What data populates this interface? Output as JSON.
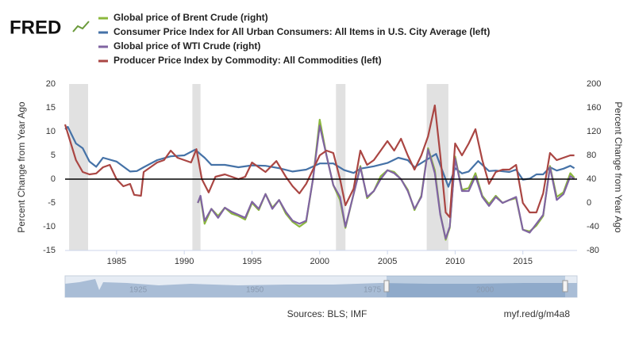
{
  "logo": "FRED",
  "chart_data": {
    "type": "line",
    "y_label": "Percent Change from Year Ago",
    "y2_label": "Percent Change from Year Ago",
    "xlim": [
      1981.2,
      2019
    ],
    "xticks": [
      1985,
      1990,
      1995,
      2000,
      2005,
      2010,
      2015
    ],
    "ylim": [
      -15,
      20
    ],
    "yticks": [
      -15,
      -10,
      -5,
      0,
      5,
      10,
      15,
      20
    ],
    "y2lim": [
      -80,
      200
    ],
    "y2ticks": [
      -80,
      -40,
      0,
      40,
      80,
      120,
      160,
      200
    ],
    "zero_line": true,
    "grid": false,
    "recessions": [
      [
        1981.5,
        1982.9
      ],
      [
        1990.6,
        1991.2
      ],
      [
        2001.2,
        2001.9
      ],
      [
        2007.9,
        2009.5
      ]
    ],
    "series": [
      {
        "name": "Global price of Brent Crude (right)",
        "color": "#8bb83c",
        "axis": "y2",
        "x": [
          1991.0,
          1991.2,
          1991.5,
          1992,
          1992.5,
          1993,
          1993.5,
          1994,
          1994.5,
          1995,
          1995.5,
          1996,
          1996.5,
          1997,
          1997.5,
          1998,
          1998.5,
          1999,
          1999.5,
          2000,
          2000.5,
          2001,
          2001.5,
          2001.9,
          2002.5,
          2003,
          2003.5,
          2004,
          2004.5,
          2005,
          2005.5,
          2006,
          2006.5,
          2007,
          2007.5,
          2008,
          2008.5,
          2008.9,
          2009.3,
          2009.6,
          2010,
          2010.5,
          2011,
          2011.5,
          2012,
          2012.5,
          2013,
          2013.5,
          2014,
          2014.5,
          2015,
          2015.5,
          2016,
          2016.5,
          2017,
          2017.5,
          2018,
          2018.5,
          2018.8
        ],
        "values": [
          0,
          10,
          -35,
          -10,
          -22,
          -8,
          -18,
          -22,
          -28,
          0,
          -12,
          15,
          -8,
          5,
          -18,
          -32,
          -40,
          -32,
          40,
          140,
          80,
          30,
          5,
          -42,
          15,
          62,
          8,
          20,
          45,
          55,
          52,
          40,
          22,
          -12,
          12,
          92,
          55,
          -18,
          -62,
          -42,
          78,
          22,
          25,
          50,
          12,
          -2,
          12,
          0,
          5,
          8,
          -45,
          -48,
          -38,
          -22,
          62,
          10,
          18,
          50,
          42
        ]
      },
      {
        "name": "Consumer Price Index for All Urban Consumers: All Items in U.S. City Average (left)",
        "color": "#4572a7",
        "x": [
          1981.2,
          1981.4,
          1982,
          1982.5,
          1983,
          1983.5,
          1984,
          1985,
          1986,
          1986.5,
          1987,
          1988,
          1989,
          1990,
          1990.8,
          1991.5,
          1992,
          1993,
          1994,
          1995,
          1996,
          1997,
          1998,
          1999,
          2000,
          2001,
          2001.8,
          2002.5,
          2003,
          2004,
          2005,
          2005.8,
          2006.5,
          2007,
          2007.9,
          2008.6,
          2009.5,
          2010,
          2010.5,
          2011,
          2011.7,
          2012.5,
          2013,
          2014,
          2014.5,
          2015,
          2015.5,
          2016,
          2016.5,
          2017,
          2017.5,
          2018,
          2018.5,
          2018.8
        ],
        "values": [
          10.5,
          11,
          7.5,
          6.5,
          3.7,
          2.6,
          4.5,
          3.7,
          1.6,
          1.7,
          2.5,
          4.0,
          4.8,
          5.0,
          6.2,
          4.5,
          3.0,
          3.0,
          2.5,
          2.9,
          2.8,
          2.3,
          1.6,
          2.0,
          3.3,
          3.3,
          1.9,
          1.3,
          2.2,
          2.7,
          3.4,
          4.5,
          4.0,
          2.5,
          4.1,
          5.3,
          -1.6,
          2.3,
          1.2,
          1.6,
          3.8,
          1.7,
          1.8,
          1.5,
          2.0,
          -0.1,
          0.1,
          1.0,
          1.0,
          2.5,
          1.8,
          2.2,
          2.8,
          2.3
        ]
      },
      {
        "name": "Global price of WTI Crude (right)",
        "color": "#8064a2",
        "axis": "y2",
        "x": [
          1991.0,
          1991.2,
          1991.5,
          1992,
          1992.5,
          1993,
          1993.5,
          1994,
          1994.5,
          1995,
          1995.5,
          1996,
          1996.5,
          1997,
          1997.5,
          1998,
          1998.5,
          1999,
          1999.5,
          2000,
          2000.5,
          2001,
          2001.5,
          2001.9,
          2002.5,
          2003,
          2003.5,
          2004,
          2004.5,
          2005,
          2005.5,
          2006,
          2006.5,
          2007,
          2007.5,
          2008,
          2008.5,
          2008.9,
          2009.3,
          2009.6,
          2010,
          2010.5,
          2011,
          2011.5,
          2012,
          2012.5,
          2013,
          2013.5,
          2014,
          2014.5,
          2015,
          2015.5,
          2016,
          2016.5,
          2017,
          2017.5,
          2018,
          2018.5,
          2018.8
        ],
        "values": [
          0,
          12,
          -30,
          -10,
          -25,
          -8,
          -15,
          -20,
          -25,
          2,
          -10,
          15,
          -10,
          5,
          -15,
          -30,
          -35,
          -30,
          40,
          130,
          80,
          30,
          10,
          -40,
          15,
          60,
          10,
          20,
          40,
          55,
          50,
          40,
          20,
          -10,
          10,
          90,
          50,
          -20,
          -60,
          -40,
          75,
          20,
          20,
          45,
          10,
          -5,
          10,
          0,
          5,
          10,
          -45,
          -50,
          -35,
          -20,
          60,
          5,
          15,
          45,
          40
        ]
      },
      {
        "name": "Producer Price Index by Commodity: All Commodities (left)",
        "color": "#aa4643",
        "x": [
          1981.2,
          1982,
          1982.5,
          1983,
          1983.5,
          1984,
          1984.5,
          1985,
          1985.5,
          1986,
          1986.3,
          1986.8,
          1987,
          1987.5,
          1988,
          1988.5,
          1989,
          1989.5,
          1990,
          1990.5,
          1990.9,
          1991.3,
          1991.8,
          1992.3,
          1993,
          1993.5,
          1994,
          1994.5,
          1995,
          1996,
          1996.8,
          1997.5,
          1998,
          1998.5,
          1999,
          1999.5,
          2000,
          2000.5,
          2001,
          2001.5,
          2001.9,
          2002.5,
          2003,
          2003.5,
          2004,
          2004.5,
          2005,
          2005.5,
          2006,
          2006.5,
          2007,
          2007.5,
          2008,
          2008.5,
          2008.9,
          2009.3,
          2009.6,
          2010,
          2010.5,
          2011,
          2011.5,
          2012,
          2012.5,
          2013,
          2013.5,
          2014,
          2014.5,
          2015,
          2015.5,
          2016,
          2016.5,
          2017,
          2017.5,
          2018,
          2018.5,
          2018.8
        ],
        "values": [
          11.5,
          4,
          1.5,
          1,
          1.2,
          2.5,
          3,
          0,
          -1.5,
          -1,
          -3.3,
          -3.5,
          1.5,
          2.5,
          3.5,
          4,
          6,
          4.5,
          4,
          3.5,
          6.3,
          0,
          -2.8,
          0.5,
          1,
          0.5,
          0,
          0.5,
          3.5,
          1.5,
          3.8,
          0.5,
          -1.5,
          -3,
          -1,
          2,
          5,
          6,
          5.5,
          0,
          -5.5,
          -2,
          6,
          3,
          4,
          6,
          8,
          6,
          8.5,
          5,
          2,
          5,
          9,
          15.5,
          5,
          -7,
          -8,
          7.5,
          5,
          7.5,
          10.5,
          4,
          -1,
          1.5,
          2,
          2,
          3,
          -5,
          -7,
          -7,
          -3,
          5.5,
          4,
          4.5,
          5,
          5
        ]
      }
    ]
  },
  "navigator": {
    "labels": [
      "1925",
      "1950",
      "1975",
      "2000"
    ]
  },
  "sources": "Sources: BLS; IMF",
  "link": "myf.red/g/m4a8"
}
